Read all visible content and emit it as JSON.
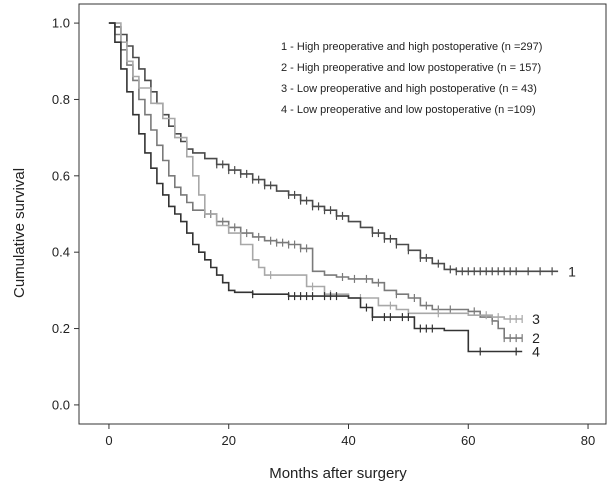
{
  "chart_data": {
    "type": "line",
    "step": true,
    "xlabel": "Months after surgery",
    "ylabel": "Cumulative survival",
    "xlim": [
      -5,
      83
    ],
    "ylim": [
      -0.05,
      1.05
    ],
    "xticks": [
      0,
      20,
      40,
      60,
      80
    ],
    "yticks": [
      0.0,
      0.2,
      0.4,
      0.6,
      0.8,
      1.0
    ],
    "xtick_labels": [
      "0",
      "20",
      "40",
      "60",
      "80"
    ],
    "ytick_labels": [
      "0.0",
      "0.2",
      "0.4",
      "0.6",
      "0.8",
      "1.0"
    ],
    "grid": false,
    "legend_position": "top-right",
    "legend": [
      "1 - High preoperative and high postoperative (n =297)",
      "2 - High preoperative and low postoperative (n = 157)",
      "3 - Low preoperative and high postoperative (n = 43)",
      "4 - Low preoperative and low postoperative (n =109)"
    ],
    "series": [
      {
        "end_label": "1",
        "color": "#4a4a4a",
        "points": [
          [
            0,
            1.0
          ],
          [
            1,
            0.99
          ],
          [
            2,
            0.97
          ],
          [
            3,
            0.94
          ],
          [
            4,
            0.91
          ],
          [
            5,
            0.88
          ],
          [
            6,
            0.85
          ],
          [
            7,
            0.82
          ],
          [
            8,
            0.79
          ],
          [
            9,
            0.76
          ],
          [
            10,
            0.73
          ],
          [
            11,
            0.71
          ],
          [
            12,
            0.69
          ],
          [
            13,
            0.67
          ],
          [
            14,
            0.66
          ],
          [
            16,
            0.645
          ],
          [
            18,
            0.63
          ],
          [
            20,
            0.615
          ],
          [
            22,
            0.605
          ],
          [
            24,
            0.59
          ],
          [
            26,
            0.575
          ],
          [
            28,
            0.56
          ],
          [
            30,
            0.55
          ],
          [
            32,
            0.535
          ],
          [
            34,
            0.52
          ],
          [
            36,
            0.51
          ],
          [
            38,
            0.495
          ],
          [
            40,
            0.48
          ],
          [
            42,
            0.465
          ],
          [
            44,
            0.45
          ],
          [
            46,
            0.435
          ],
          [
            48,
            0.42
          ],
          [
            50,
            0.405
          ],
          [
            52,
            0.385
          ],
          [
            54,
            0.37
          ],
          [
            56,
            0.355
          ],
          [
            58,
            0.35
          ],
          [
            75,
            0.35
          ]
        ],
        "censor_x": [
          18,
          19,
          20,
          21,
          22,
          23,
          24,
          25,
          26,
          27,
          30,
          31,
          32,
          33,
          34,
          35,
          36,
          37,
          38,
          39,
          44,
          45,
          46,
          47,
          48,
          50,
          52,
          53,
          55,
          57,
          58,
          59,
          60,
          61,
          62,
          63,
          64,
          65,
          66,
          67,
          68,
          70,
          72,
          74
        ]
      },
      {
        "end_label": "2",
        "color": "#7a7a7a",
        "points": [
          [
            0,
            1.0
          ],
          [
            1,
            0.97
          ],
          [
            2,
            0.93
          ],
          [
            3,
            0.89
          ],
          [
            4,
            0.85
          ],
          [
            5,
            0.8
          ],
          [
            6,
            0.76
          ],
          [
            7,
            0.72
          ],
          [
            8,
            0.68
          ],
          [
            9,
            0.64
          ],
          [
            10,
            0.6
          ],
          [
            11,
            0.57
          ],
          [
            12,
            0.55
          ],
          [
            13,
            0.53
          ],
          [
            14,
            0.51
          ],
          [
            16,
            0.5
          ],
          [
            18,
            0.48
          ],
          [
            20,
            0.465
          ],
          [
            22,
            0.45
          ],
          [
            24,
            0.44
          ],
          [
            26,
            0.43
          ],
          [
            28,
            0.425
          ],
          [
            30,
            0.42
          ],
          [
            32,
            0.41
          ],
          [
            34,
            0.35
          ],
          [
            36,
            0.34
          ],
          [
            38,
            0.335
          ],
          [
            40,
            0.33
          ],
          [
            44,
            0.32
          ],
          [
            46,
            0.3
          ],
          [
            48,
            0.29
          ],
          [
            50,
            0.28
          ],
          [
            52,
            0.26
          ],
          [
            54,
            0.25
          ],
          [
            60,
            0.245
          ],
          [
            62,
            0.23
          ],
          [
            64,
            0.22
          ],
          [
            65,
            0.2
          ],
          [
            66,
            0.175
          ],
          [
            69,
            0.175
          ]
        ],
        "censor_x": [
          16,
          17,
          19,
          21,
          23,
          25,
          27,
          28,
          29,
          30,
          31,
          32,
          33,
          39,
          41,
          43,
          45,
          48,
          51,
          53,
          55,
          57,
          61,
          64,
          66,
          67,
          68,
          69
        ]
      },
      {
        "end_label": "3",
        "color": "#a8a8a8",
        "points": [
          [
            0,
            1.0
          ],
          [
            2,
            0.95
          ],
          [
            3,
            0.9
          ],
          [
            4,
            0.86
          ],
          [
            5,
            0.83
          ],
          [
            7,
            0.79
          ],
          [
            9,
            0.75
          ],
          [
            11,
            0.7
          ],
          [
            13,
            0.65
          ],
          [
            14,
            0.6
          ],
          [
            15,
            0.55
          ],
          [
            16,
            0.5
          ],
          [
            18,
            0.47
          ],
          [
            20,
            0.45
          ],
          [
            22,
            0.42
          ],
          [
            24,
            0.38
          ],
          [
            25,
            0.36
          ],
          [
            26,
            0.34
          ],
          [
            32,
            0.34
          ],
          [
            33,
            0.31
          ],
          [
            36,
            0.29
          ],
          [
            40,
            0.28
          ],
          [
            45,
            0.26
          ],
          [
            48,
            0.25
          ],
          [
            50,
            0.24
          ],
          [
            60,
            0.235
          ],
          [
            64,
            0.23
          ],
          [
            66,
            0.225
          ],
          [
            69,
            0.225
          ]
        ],
        "censor_x": [
          27,
          34,
          37,
          42,
          47,
          55,
          63,
          65,
          67,
          68,
          69
        ]
      },
      {
        "end_label": "4",
        "color": "#333333",
        "points": [
          [
            0,
            1.0
          ],
          [
            1,
            0.95
          ],
          [
            2,
            0.88
          ],
          [
            3,
            0.82
          ],
          [
            4,
            0.76
          ],
          [
            5,
            0.71
          ],
          [
            6,
            0.66
          ],
          [
            7,
            0.62
          ],
          [
            8,
            0.58
          ],
          [
            9,
            0.55
          ],
          [
            10,
            0.52
          ],
          [
            11,
            0.5
          ],
          [
            12,
            0.48
          ],
          [
            13,
            0.45
          ],
          [
            14,
            0.42
          ],
          [
            15,
            0.4
          ],
          [
            16,
            0.38
          ],
          [
            17,
            0.36
          ],
          [
            18,
            0.34
          ],
          [
            19,
            0.32
          ],
          [
            20,
            0.3
          ],
          [
            21,
            0.295
          ],
          [
            24,
            0.29
          ],
          [
            30,
            0.285
          ],
          [
            35,
            0.285
          ],
          [
            40,
            0.28
          ],
          [
            42,
            0.255
          ],
          [
            44,
            0.23
          ],
          [
            50,
            0.23
          ],
          [
            51,
            0.2
          ],
          [
            55,
            0.2
          ],
          [
            56,
            0.195
          ],
          [
            60,
            0.14
          ],
          [
            69,
            0.14
          ]
        ],
        "censor_x": [
          24,
          30,
          31,
          32,
          33,
          34,
          36,
          37,
          38,
          43,
          44,
          46,
          47,
          49,
          50,
          52,
          53,
          54,
          62,
          68
        ]
      }
    ]
  }
}
